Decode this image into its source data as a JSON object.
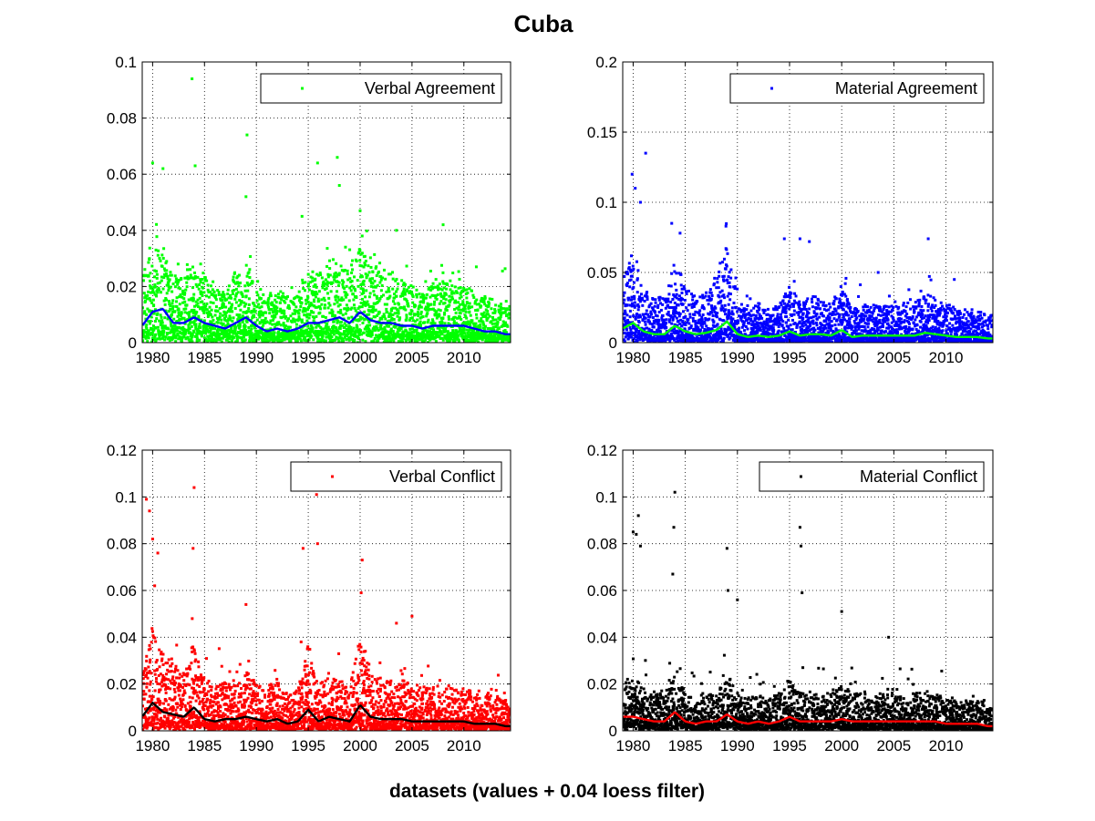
{
  "figure": {
    "title": "Cuba",
    "xlabel": "datasets (values + 0.04 loess filter)"
  },
  "chart_data": [
    {
      "type": "scatter",
      "panel": "top-left",
      "series": [
        {
          "name": "Verbal Agreement",
          "kind": "points",
          "color": "#00ff00"
        },
        {
          "name": "",
          "kind": "loess",
          "color": "#0000ff"
        }
      ],
      "xlim": [
        1979,
        2014.5
      ],
      "ylim": [
        0,
        0.1
      ],
      "xticks": [
        1980,
        1985,
        1990,
        1995,
        2000,
        2005,
        2010
      ],
      "yticks": [
        0,
        0.02,
        0.04,
        0.06,
        0.08,
        0.1
      ],
      "ytick_labels": [
        "0",
        "0.02",
        "0.04",
        "0.06",
        "0.08",
        "0.1"
      ],
      "grid": true,
      "legend_position": "top-right",
      "noise_level": 0.006,
      "loess": [
        [
          1979,
          0.006
        ],
        [
          1980,
          0.011
        ],
        [
          1981,
          0.012
        ],
        [
          1982,
          0.007
        ],
        [
          1983,
          0.007
        ],
        [
          1984,
          0.009
        ],
        [
          1985,
          0.007
        ],
        [
          1986,
          0.006
        ],
        [
          1987,
          0.005
        ],
        [
          1988,
          0.007
        ],
        [
          1989,
          0.009
        ],
        [
          1990,
          0.006
        ],
        [
          1991,
          0.004
        ],
        [
          1992,
          0.005
        ],
        [
          1993,
          0.004
        ],
        [
          1994,
          0.005
        ],
        [
          1995,
          0.007
        ],
        [
          1996,
          0.007
        ],
        [
          1997,
          0.008
        ],
        [
          1998,
          0.009
        ],
        [
          1999,
          0.007
        ],
        [
          2000,
          0.011
        ],
        [
          2001,
          0.008
        ],
        [
          2002,
          0.007
        ],
        [
          2003,
          0.007
        ],
        [
          2004,
          0.006
        ],
        [
          2005,
          0.006
        ],
        [
          2006,
          0.005
        ],
        [
          2007,
          0.006
        ],
        [
          2008,
          0.006
        ],
        [
          2009,
          0.006
        ],
        [
          2010,
          0.006
        ],
        [
          2011,
          0.005
        ],
        [
          2012,
          0.004
        ],
        [
          2013,
          0.004
        ],
        [
          2014,
          0.003
        ]
      ],
      "spikes": [
        [
          1980,
          0.064
        ],
        [
          1981,
          0.062
        ],
        [
          1983.8,
          0.094
        ],
        [
          1984.1,
          0.063
        ],
        [
          1989.1,
          0.074
        ],
        [
          1989,
          0.052
        ],
        [
          1994.4,
          0.045
        ],
        [
          1995.9,
          0.064
        ],
        [
          1997.8,
          0.066
        ],
        [
          1998,
          0.056
        ],
        [
          2000,
          0.047
        ],
        [
          2000.2,
          0.038
        ],
        [
          2003.5,
          0.04
        ],
        [
          2008,
          0.042
        ],
        [
          2011.2,
          0.027
        ]
      ]
    },
    {
      "type": "scatter",
      "panel": "top-right",
      "series": [
        {
          "name": "Material Agreement",
          "kind": "points",
          "color": "#0000ff"
        },
        {
          "name": "",
          "kind": "loess",
          "color": "#00ff00"
        }
      ],
      "xlim": [
        1979,
        2014.5
      ],
      "ylim": [
        0,
        0.2
      ],
      "xticks": [
        1980,
        1985,
        1990,
        1995,
        2000,
        2005,
        2010
      ],
      "yticks": [
        0,
        0.05,
        0.1,
        0.15,
        0.2
      ],
      "ytick_labels": [
        "0",
        "0.05",
        "0.1",
        "0.15",
        "0.2"
      ],
      "grid": true,
      "legend_position": "top-right",
      "noise_level": 0.009,
      "loess": [
        [
          1979,
          0.01
        ],
        [
          1980,
          0.014
        ],
        [
          1981,
          0.008
        ],
        [
          1982,
          0.006
        ],
        [
          1983,
          0.006
        ],
        [
          1984,
          0.012
        ],
        [
          1985,
          0.008
        ],
        [
          1986,
          0.006
        ],
        [
          1987,
          0.007
        ],
        [
          1988,
          0.009
        ],
        [
          1989,
          0.015
        ],
        [
          1990,
          0.006
        ],
        [
          1991,
          0.004
        ],
        [
          1992,
          0.005
        ],
        [
          1993,
          0.004
        ],
        [
          1994,
          0.005
        ],
        [
          1995,
          0.008
        ],
        [
          1996,
          0.005
        ],
        [
          1997,
          0.006
        ],
        [
          1998,
          0.006
        ],
        [
          1999,
          0.005
        ],
        [
          2000,
          0.009
        ],
        [
          2001,
          0.004
        ],
        [
          2002,
          0.005
        ],
        [
          2003,
          0.005
        ],
        [
          2004,
          0.005
        ],
        [
          2005,
          0.005
        ],
        [
          2006,
          0.005
        ],
        [
          2007,
          0.005
        ],
        [
          2008,
          0.007
        ],
        [
          2009,
          0.006
        ],
        [
          2010,
          0.005
        ],
        [
          2011,
          0.004
        ],
        [
          2012,
          0.004
        ],
        [
          2013,
          0.004
        ],
        [
          2014,
          0.003
        ]
      ],
      "spikes": [
        [
          1979.9,
          0.12
        ],
        [
          1980.2,
          0.11
        ],
        [
          1981.2,
          0.135
        ],
        [
          1980.7,
          0.1
        ],
        [
          1983.7,
          0.085
        ],
        [
          1984.5,
          0.078
        ],
        [
          1988.9,
          0.083
        ],
        [
          1994.5,
          0.074
        ],
        [
          1996,
          0.074
        ],
        [
          1996.9,
          0.072
        ],
        [
          2003.5,
          0.05
        ],
        [
          2008.3,
          0.074
        ],
        [
          2010.8,
          0.045
        ]
      ]
    },
    {
      "type": "scatter",
      "panel": "bottom-left",
      "series": [
        {
          "name": "Verbal Conflict",
          "kind": "points",
          "color": "#ff0000"
        },
        {
          "name": "",
          "kind": "loess",
          "color": "#000000"
        }
      ],
      "xlim": [
        1979,
        2014.5
      ],
      "ylim": [
        0,
        0.12
      ],
      "xticks": [
        1980,
        1985,
        1990,
        1995,
        2000,
        2005,
        2010
      ],
      "yticks": [
        0,
        0.02,
        0.04,
        0.06,
        0.08,
        0.1,
        0.12
      ],
      "ytick_labels": [
        "0",
        "0.02",
        "0.04",
        "0.06",
        "0.08",
        "0.1",
        "0.12"
      ],
      "grid": true,
      "legend_position": "top-right",
      "noise_level": 0.007,
      "loess": [
        [
          1979,
          0.006
        ],
        [
          1980,
          0.012
        ],
        [
          1981,
          0.008
        ],
        [
          1982,
          0.007
        ],
        [
          1983,
          0.006
        ],
        [
          1984,
          0.01
        ],
        [
          1985,
          0.005
        ],
        [
          1986,
          0.004
        ],
        [
          1987,
          0.005
        ],
        [
          1988,
          0.005
        ],
        [
          1989,
          0.006
        ],
        [
          1990,
          0.005
        ],
        [
          1991,
          0.004
        ],
        [
          1992,
          0.005
        ],
        [
          1993,
          0.003
        ],
        [
          1994,
          0.004
        ],
        [
          1995,
          0.009
        ],
        [
          1996,
          0.004
        ],
        [
          1997,
          0.006
        ],
        [
          1998,
          0.005
        ],
        [
          1999,
          0.004
        ],
        [
          2000,
          0.011
        ],
        [
          2001,
          0.006
        ],
        [
          2002,
          0.005
        ],
        [
          2003,
          0.005
        ],
        [
          2004,
          0.005
        ],
        [
          2005,
          0.004
        ],
        [
          2006,
          0.004
        ],
        [
          2007,
          0.004
        ],
        [
          2008,
          0.004
        ],
        [
          2009,
          0.004
        ],
        [
          2010,
          0.004
        ],
        [
          2011,
          0.003
        ],
        [
          2012,
          0.003
        ],
        [
          2013,
          0.003
        ],
        [
          2014,
          0.002
        ]
      ],
      "spikes": [
        [
          1979.4,
          0.099
        ],
        [
          1979.7,
          0.094
        ],
        [
          1980,
          0.082
        ],
        [
          1980.5,
          0.076
        ],
        [
          1980.2,
          0.062
        ],
        [
          1984,
          0.104
        ],
        [
          1983.9,
          0.078
        ],
        [
          1989,
          0.054
        ],
        [
          1994.5,
          0.078
        ],
        [
          1995.8,
          0.101
        ],
        [
          1995.9,
          0.08
        ],
        [
          2000.2,
          0.073
        ],
        [
          2000.1,
          0.059
        ],
        [
          2003.5,
          0.046
        ],
        [
          2005,
          0.049
        ]
      ]
    },
    {
      "type": "scatter",
      "panel": "bottom-right",
      "series": [
        {
          "name": "Material Conflict",
          "kind": "points",
          "color": "#000000"
        },
        {
          "name": "",
          "kind": "loess",
          "color": "#ff0000"
        }
      ],
      "xlim": [
        1979,
        2014.5
      ],
      "ylim": [
        0,
        0.12
      ],
      "xticks": [
        1980,
        1985,
        1990,
        1995,
        2000,
        2005,
        2010
      ],
      "yticks": [
        0,
        0.02,
        0.04,
        0.06,
        0.08,
        0.1,
        0.12
      ],
      "ytick_labels": [
        "0",
        "0.02",
        "0.04",
        "0.06",
        "0.08",
        "0.1",
        "0.12"
      ],
      "grid": true,
      "legend_position": "top-right",
      "noise_level": 0.006,
      "loess": [
        [
          1979,
          0.006
        ],
        [
          1980,
          0.006
        ],
        [
          1981,
          0.005
        ],
        [
          1982,
          0.004
        ],
        [
          1983,
          0.004
        ],
        [
          1984,
          0.008
        ],
        [
          1985,
          0.004
        ],
        [
          1986,
          0.003
        ],
        [
          1987,
          0.004
        ],
        [
          1988,
          0.004
        ],
        [
          1989,
          0.007
        ],
        [
          1990,
          0.004
        ],
        [
          1991,
          0.003
        ],
        [
          1992,
          0.004
        ],
        [
          1993,
          0.003
        ],
        [
          1994,
          0.004
        ],
        [
          1995,
          0.006
        ],
        [
          1996,
          0.004
        ],
        [
          1997,
          0.004
        ],
        [
          1998,
          0.004
        ],
        [
          1999,
          0.004
        ],
        [
          2000,
          0.005
        ],
        [
          2001,
          0.004
        ],
        [
          2002,
          0.004
        ],
        [
          2003,
          0.004
        ],
        [
          2004,
          0.004
        ],
        [
          2005,
          0.004
        ],
        [
          2006,
          0.004
        ],
        [
          2007,
          0.004
        ],
        [
          2008,
          0.004
        ],
        [
          2009,
          0.004
        ],
        [
          2010,
          0.003
        ],
        [
          2011,
          0.003
        ],
        [
          2012,
          0.003
        ],
        [
          2013,
          0.003
        ],
        [
          2014,
          0.002
        ]
      ],
      "spikes": [
        [
          1980,
          0.085
        ],
        [
          1980.5,
          0.092
        ],
        [
          1980.3,
          0.084
        ],
        [
          1980.7,
          0.079
        ],
        [
          1984,
          0.102
        ],
        [
          1983.9,
          0.087
        ],
        [
          1983.8,
          0.067
        ],
        [
          1989,
          0.078
        ],
        [
          1989.1,
          0.06
        ],
        [
          1990,
          0.056
        ],
        [
          1996,
          0.087
        ],
        [
          1996.1,
          0.079
        ],
        [
          1996.2,
          0.059
        ],
        [
          2000,
          0.051
        ],
        [
          2004.5,
          0.04
        ]
      ]
    }
  ]
}
